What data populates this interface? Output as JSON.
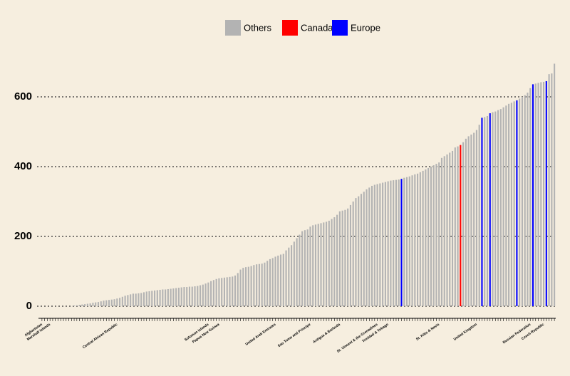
{
  "chart_data": {
    "type": "bar",
    "categories": [
      "Afghanistan",
      null,
      null,
      "Marshall Islands",
      null,
      null,
      null,
      null,
      null,
      null,
      null,
      null,
      null,
      null,
      null,
      null,
      null,
      null,
      null,
      null,
      null,
      null,
      null,
      null,
      null,
      null,
      null,
      null,
      "Central African Republic",
      null,
      null,
      null,
      null,
      null,
      null,
      null,
      null,
      null,
      null,
      null,
      null,
      null,
      null,
      null,
      null,
      null,
      null,
      null,
      null,
      null,
      null,
      null,
      null,
      null,
      null,
      null,
      null,
      null,
      null,
      null,
      null,
      null,
      "Solomon Islands",
      null,
      null,
      null,
      "Papua New Guinea",
      null,
      null,
      null,
      null,
      null,
      null,
      null,
      null,
      null,
      null,
      null,
      null,
      null,
      null,
      null,
      null,
      null,
      null,
      null,
      null,
      "United Arab Emirates",
      null,
      null,
      null,
      null,
      null,
      null,
      null,
      null,
      null,
      null,
      null,
      null,
      "Sao Tome and Principe",
      null,
      null,
      null,
      null,
      null,
      null,
      null,
      null,
      null,
      null,
      "Antigua & Barbuda",
      null,
      null,
      null,
      null,
      null,
      null,
      null,
      null,
      null,
      null,
      null,
      null,
      null,
      "St. Vincent & the Grenadines",
      null,
      null,
      null,
      "Trinidad & Tobago",
      null,
      null,
      null,
      null,
      null,
      null,
      null,
      null,
      null,
      null,
      null,
      null,
      null,
      null,
      null,
      null,
      null,
      null,
      "St. Kitts & Nevis",
      null,
      null,
      null,
      null,
      null,
      null,
      null,
      null,
      null,
      null,
      null,
      null,
      null,
      "United Kingdom",
      null,
      null,
      null,
      null,
      null,
      null,
      null,
      null,
      null,
      null,
      null,
      null,
      null,
      null,
      null,
      null,
      null,
      null,
      null,
      "Russian Federation",
      null,
      null,
      null,
      null,
      "Czech Republic",
      null,
      null,
      null,
      null
    ],
    "series": [
      {
        "name": "Others",
        "color": "#b3b3b3",
        "values": [
          0,
          0,
          0,
          0,
          0,
          0,
          0,
          0,
          0,
          0,
          0,
          0,
          2,
          3,
          4,
          5,
          6,
          7,
          8,
          10,
          11,
          12,
          14,
          16,
          17,
          18,
          19,
          20,
          22,
          24,
          27,
          30,
          32,
          34,
          36,
          36,
          37,
          38,
          40,
          42,
          43,
          44,
          45,
          46,
          47,
          48,
          48,
          49,
          50,
          51,
          52,
          53,
          54,
          55,
          55,
          56,
          56,
          57,
          58,
          60,
          62,
          65,
          68,
          72,
          75,
          78,
          80,
          81,
          82,
          83,
          84,
          85,
          88,
          95,
          105,
          110,
          112,
          113,
          115,
          118,
          120,
          121,
          122,
          125,
          130,
          135,
          138,
          142,
          145,
          148,
          150,
          160,
          168,
          175,
          185,
          195,
          205,
          215,
          218,
          220,
          228,
          232,
          234,
          236,
          238,
          240,
          242,
          245,
          250,
          255,
          262,
          272,
          274,
          276,
          280,
          290,
          300,
          310,
          315,
          322,
          328,
          335,
          340,
          345,
          348,
          350,
          352,
          354,
          356,
          358,
          360,
          361,
          362,
          363,
          null,
          368,
          370,
          372,
          375,
          378,
          380,
          384,
          388,
          392,
          396,
          400,
          404,
          408,
          412,
          425,
          430,
          435,
          440,
          445,
          455,
          458,
          null,
          470,
          480,
          487,
          492,
          497,
          505,
          520,
          null,
          542,
          545,
          null,
          556,
          558,
          562,
          565,
          570,
          575,
          580,
          583,
          587,
          null,
          595,
          600,
          605,
          612,
          625,
          null,
          638,
          640,
          642,
          643,
          null,
          665,
          667,
          695
        ]
      },
      {
        "name": "Canada",
        "color": "#ff0000",
        "values": [
          null,
          null,
          null,
          null,
          null,
          null,
          null,
          null,
          null,
          null,
          null,
          null,
          null,
          null,
          null,
          null,
          null,
          null,
          null,
          null,
          null,
          null,
          null,
          null,
          null,
          null,
          null,
          null,
          null,
          null,
          null,
          null,
          null,
          null,
          null,
          null,
          null,
          null,
          null,
          null,
          null,
          null,
          null,
          null,
          null,
          null,
          null,
          null,
          null,
          null,
          null,
          null,
          null,
          null,
          null,
          null,
          null,
          null,
          null,
          null,
          null,
          null,
          null,
          null,
          null,
          null,
          null,
          null,
          null,
          null,
          null,
          null,
          null,
          null,
          null,
          null,
          null,
          null,
          null,
          null,
          null,
          null,
          null,
          null,
          null,
          null,
          null,
          null,
          null,
          null,
          null,
          null,
          null,
          null,
          null,
          null,
          null,
          null,
          null,
          null,
          null,
          null,
          null,
          null,
          null,
          null,
          null,
          null,
          null,
          null,
          null,
          null,
          null,
          null,
          null,
          null,
          null,
          null,
          null,
          null,
          null,
          null,
          null,
          null,
          null,
          null,
          null,
          null,
          null,
          null,
          null,
          null,
          null,
          null,
          null,
          null,
          null,
          null,
          null,
          null,
          null,
          null,
          null,
          null,
          null,
          null,
          null,
          null,
          null,
          null,
          null,
          null,
          null,
          null,
          null,
          null,
          462,
          null,
          null,
          null,
          null,
          null,
          null,
          null,
          null,
          null,
          null,
          null,
          null,
          null,
          null,
          null,
          null,
          null,
          null,
          null,
          null,
          null,
          null,
          null,
          null,
          null,
          null,
          null,
          null,
          null,
          null,
          null,
          null,
          null,
          null,
          null
        ]
      },
      {
        "name": "Europe",
        "color": "#0000ff",
        "values": [
          null,
          null,
          null,
          null,
          null,
          null,
          null,
          null,
          null,
          null,
          null,
          null,
          null,
          null,
          null,
          null,
          null,
          null,
          null,
          null,
          null,
          null,
          null,
          null,
          null,
          null,
          null,
          null,
          null,
          null,
          null,
          null,
          null,
          null,
          null,
          null,
          null,
          null,
          null,
          null,
          null,
          null,
          null,
          null,
          null,
          null,
          null,
          null,
          null,
          null,
          null,
          null,
          null,
          null,
          null,
          null,
          null,
          null,
          null,
          null,
          null,
          null,
          null,
          null,
          null,
          null,
          null,
          null,
          null,
          null,
          null,
          null,
          null,
          null,
          null,
          null,
          null,
          null,
          null,
          null,
          null,
          null,
          null,
          null,
          null,
          null,
          null,
          null,
          null,
          null,
          null,
          null,
          null,
          null,
          null,
          null,
          null,
          null,
          null,
          null,
          null,
          null,
          null,
          null,
          null,
          null,
          null,
          null,
          null,
          null,
          null,
          null,
          null,
          null,
          null,
          null,
          null,
          null,
          null,
          null,
          null,
          null,
          null,
          null,
          null,
          null,
          null,
          null,
          null,
          null,
          null,
          null,
          null,
          null,
          365,
          null,
          null,
          null,
          null,
          null,
          null,
          null,
          null,
          null,
          null,
          null,
          null,
          null,
          null,
          null,
          null,
          null,
          null,
          null,
          null,
          null,
          null,
          null,
          null,
          null,
          null,
          null,
          null,
          null,
          540,
          null,
          null,
          553,
          null,
          null,
          null,
          null,
          null,
          null,
          null,
          null,
          null,
          590,
          null,
          null,
          null,
          null,
          null,
          636,
          null,
          null,
          null,
          null,
          645,
          null,
          null,
          null
        ]
      }
    ],
    "ylim": [
      0,
      700
    ],
    "yticks": [
      0,
      200,
      400,
      600
    ],
    "grid": true,
    "legend": "top"
  }
}
